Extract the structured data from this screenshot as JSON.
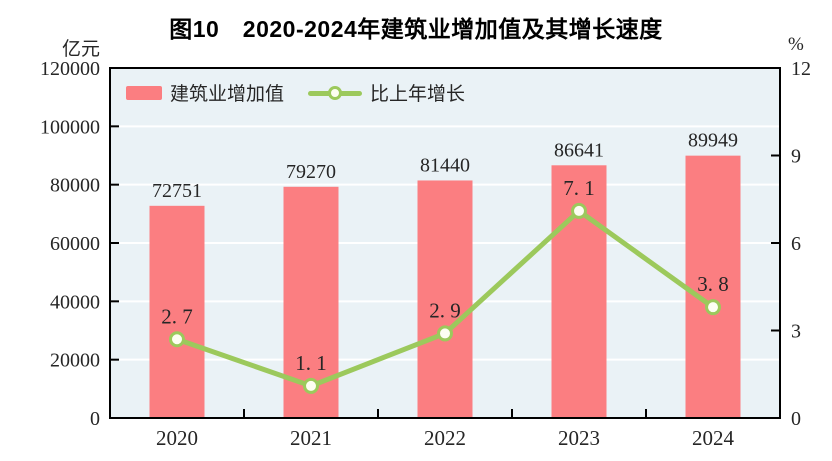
{
  "title": "图10　2020-2024年建筑业增加值及其增长速度",
  "chart_data": {
    "type": "bar",
    "title": "图10　2020-2024年建筑业增加值及其增长速度",
    "categories": [
      "2020",
      "2021",
      "2022",
      "2023",
      "2024"
    ],
    "series": [
      {
        "name": "建筑业增加值",
        "type": "bar",
        "axis": "left",
        "values": [
          72751,
          79270,
          81440,
          86641,
          89949
        ]
      },
      {
        "name": "比上年增长",
        "type": "line",
        "axis": "right",
        "values": [
          2.7,
          1.1,
          2.9,
          7.1,
          3.8
        ]
      }
    ],
    "left_axis": {
      "label": "亿元",
      "min": 0,
      "max": 120000,
      "step": 20000
    },
    "right_axis": {
      "label": "%",
      "min": 0,
      "max": 12,
      "step": 3
    },
    "grid": true,
    "legend_position": "inside-top-left",
    "colors": {
      "bar": "#fb7e81",
      "line": "#9cc95c",
      "marker_fill": "#fdfef2",
      "plot_bg": "#eaf2f6",
      "grid": "#ffffff",
      "frame": "#000000",
      "text": "#262626"
    }
  }
}
